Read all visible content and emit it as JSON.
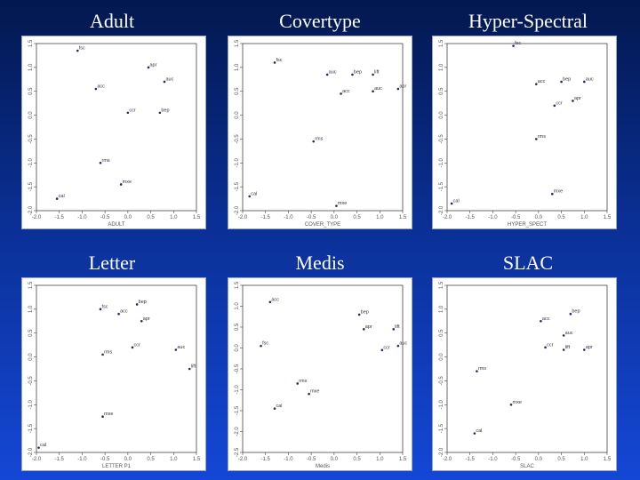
{
  "titles": [
    "Adult",
    "Covertype",
    "Hyper-Spectral",
    "Letter",
    "Medis",
    "SLAC"
  ],
  "chart_data": [
    {
      "type": "scatter",
      "title": "Adult",
      "xlabel": "ADULT",
      "ylabel": "",
      "xlim": [
        -2.0,
        1.5
      ],
      "ylim": [
        -2.0,
        1.5
      ],
      "xticks": [
        "-2.0",
        "-1.5",
        "-1.0",
        "-0.5",
        "0.0",
        "0.5",
        "1.0",
        "1.5"
      ],
      "yticks": [
        "-2.0",
        "-1.5",
        "-1.0",
        "-0.5",
        "0.0",
        "0.5",
        "1.0",
        "1.5"
      ],
      "points": [
        {
          "label": "fsc",
          "x": -1.1,
          "y": 1.35
        },
        {
          "label": "apr",
          "x": 0.45,
          "y": 1.0
        },
        {
          "label": "auc",
          "x": 0.8,
          "y": 0.7
        },
        {
          "label": "acc",
          "x": -0.7,
          "y": 0.55
        },
        {
          "label": "ccr",
          "x": 0.0,
          "y": 0.05
        },
        {
          "label": "bep",
          "x": 0.7,
          "y": 0.05
        },
        {
          "label": "rms",
          "x": -0.6,
          "y": -1.0
        },
        {
          "label": "mxe",
          "x": -0.15,
          "y": -1.45
        },
        {
          "label": "cal",
          "x": -1.55,
          "y": -1.75
        }
      ]
    },
    {
      "type": "scatter",
      "title": "Covertype",
      "xlabel": "COVER_TYPE",
      "ylabel": "",
      "xlim": [
        -2.0,
        1.5
      ],
      "ylim": [
        -2.0,
        1.5
      ],
      "xticks": [
        "-2.0",
        "-1.5",
        "-1.0",
        "-0.5",
        "0.0",
        "0.5",
        "1.0",
        "1.5"
      ],
      "yticks": [
        "-2.0",
        "-1.5",
        "-1.0",
        "-0.5",
        "0.0",
        "0.5",
        "1.0",
        "1.5"
      ],
      "points": [
        {
          "label": "fsc",
          "x": -1.3,
          "y": 1.1
        },
        {
          "label": "auc",
          "x": -0.15,
          "y": 0.85
        },
        {
          "label": "bep",
          "x": 0.4,
          "y": 0.85
        },
        {
          "label": "lift",
          "x": 0.85,
          "y": 0.85
        },
        {
          "label": "apr",
          "x": 1.4,
          "y": 0.55
        },
        {
          "label": "auc",
          "x": 0.85,
          "y": 0.5
        },
        {
          "label": "acc",
          "x": 0.15,
          "y": 0.45
        },
        {
          "label": "rms",
          "x": -0.45,
          "y": -0.55
        },
        {
          "label": "cal",
          "x": -1.85,
          "y": -1.7
        },
        {
          "label": "mxe",
          "x": 0.05,
          "y": -1.9
        }
      ]
    },
    {
      "type": "scatter",
      "title": "Hyper-Spectral",
      "xlabel": "HYPER_SPECT",
      "ylabel": "",
      "xlim": [
        -2.0,
        1.5
      ],
      "ylim": [
        -2.0,
        1.5
      ],
      "xticks": [
        "-2.0",
        "-1.5",
        "-1.0",
        "-0.5",
        "0.0",
        "0.5",
        "1.0",
        "1.5"
      ],
      "yticks": [
        "-2.0",
        "-1.5",
        "-1.0",
        "-0.5",
        "0.0",
        "0.5",
        "1.0",
        "1.5"
      ],
      "points": [
        {
          "label": "fsc",
          "x": -0.55,
          "y": 1.45
        },
        {
          "label": "acc",
          "x": -0.05,
          "y": 0.65
        },
        {
          "label": "bep",
          "x": 0.5,
          "y": 0.7
        },
        {
          "label": "auc",
          "x": 1.0,
          "y": 0.7
        },
        {
          "label": "apr",
          "x": 0.75,
          "y": 0.3
        },
        {
          "label": "ccr",
          "x": 0.35,
          "y": 0.2
        },
        {
          "label": "rms",
          "x": -0.05,
          "y": -0.5
        },
        {
          "label": "mxe",
          "x": 0.3,
          "y": -1.65
        },
        {
          "label": "cal",
          "x": -1.9,
          "y": -1.85
        }
      ]
    },
    {
      "type": "scatter",
      "title": "Letter",
      "xlabel": "LETTER P1",
      "ylabel": "",
      "xlim": [
        -2.0,
        1.5
      ],
      "ylim": [
        -2.0,
        1.5
      ],
      "xticks": [
        "-2.0",
        "-1.5",
        "-1.0",
        "-0.5",
        "0.0",
        "0.5",
        "1.0",
        "1.5"
      ],
      "yticks": [
        "-2.0",
        "-1.5",
        "-1.0",
        "-0.5",
        "0.0",
        "0.5",
        "1.0",
        "1.5"
      ],
      "points": [
        {
          "label": "fsc",
          "x": -0.6,
          "y": 1.0
        },
        {
          "label": "acc",
          "x": -0.2,
          "y": 0.9
        },
        {
          "label": "bep",
          "x": 0.2,
          "y": 1.1
        },
        {
          "label": "apr",
          "x": 0.3,
          "y": 0.75
        },
        {
          "label": "ccr",
          "x": 0.1,
          "y": 0.2
        },
        {
          "label": "auc",
          "x": 1.05,
          "y": 0.15
        },
        {
          "label": "rms",
          "x": -0.55,
          "y": 0.05
        },
        {
          "label": "lift",
          "x": 1.35,
          "y": -0.25
        },
        {
          "label": "mxe",
          "x": -0.55,
          "y": -1.25
        },
        {
          "label": "cal",
          "x": -1.95,
          "y": -1.9
        }
      ]
    },
    {
      "type": "scatter",
      "title": "Medis",
      "xlabel": "Medis",
      "ylabel": "",
      "xlim": [
        -2.0,
        1.5
      ],
      "ylim": [
        -2.5,
        1.5
      ],
      "xticks": [
        "-2.0",
        "-1.5",
        "-1.0",
        "-0.5",
        "0.0",
        "0.5",
        "1.0",
        "1.5"
      ],
      "yticks": [
        "-2.5",
        "-2.0",
        "-1.5",
        "-1.0",
        "-0.5",
        "0.0",
        "0.5",
        "1.0",
        "1.5"
      ],
      "points": [
        {
          "label": "acc",
          "x": -1.4,
          "y": 1.1
        },
        {
          "label": "bep",
          "x": 0.55,
          "y": 0.8
        },
        {
          "label": "apr",
          "x": 0.65,
          "y": 0.45
        },
        {
          "label": "lift",
          "x": 1.3,
          "y": 0.45
        },
        {
          "label": "fsc",
          "x": -1.6,
          "y": 0.05
        },
        {
          "label": "ccr",
          "x": 1.05,
          "y": -0.05
        },
        {
          "label": "auc",
          "x": 1.4,
          "y": 0.05
        },
        {
          "label": "rms",
          "x": -0.8,
          "y": -0.85
        },
        {
          "label": "mxe",
          "x": -0.55,
          "y": -1.1
        },
        {
          "label": "cal",
          "x": -1.3,
          "y": -1.45
        }
      ]
    },
    {
      "type": "scatter",
      "title": "SLAC",
      "xlabel": "SLAC",
      "ylabel": "",
      "xlim": [
        -2.0,
        1.5
      ],
      "ylim": [
        -2.0,
        1.5
      ],
      "xticks": [
        "-2.0",
        "-1.5",
        "-1.0",
        "-0.5",
        "0.0",
        "0.5",
        "1.0",
        "1.5"
      ],
      "yticks": [
        "-2.0",
        "-1.5",
        "-1.0",
        "-0.5",
        "0.0",
        "0.5",
        "1.0",
        "1.5"
      ],
      "points": [
        {
          "label": "bep",
          "x": 0.7,
          "y": 0.9
        },
        {
          "label": "acc",
          "x": 0.05,
          "y": 0.75
        },
        {
          "label": "auc",
          "x": 0.55,
          "y": 0.45
        },
        {
          "label": "ccr",
          "x": 0.15,
          "y": 0.2
        },
        {
          "label": "lift",
          "x": 0.55,
          "y": 0.15
        },
        {
          "label": "apr",
          "x": 1.0,
          "y": 0.15
        },
        {
          "label": "rms",
          "x": -1.35,
          "y": -0.3
        },
        {
          "label": "mxe",
          "x": -0.6,
          "y": -1.0
        },
        {
          "label": "cal",
          "x": -1.4,
          "y": -1.6
        }
      ]
    }
  ]
}
